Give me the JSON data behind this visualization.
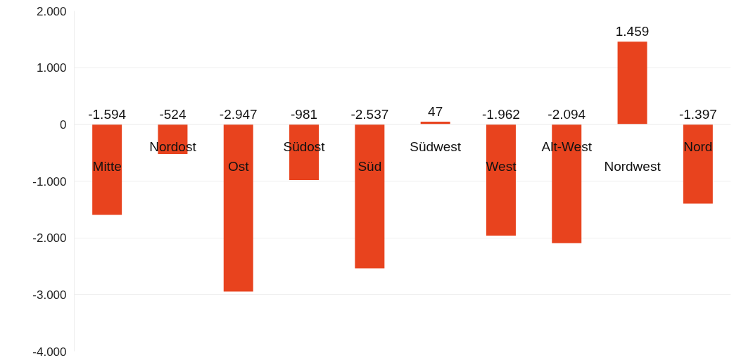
{
  "chart_data": {
    "type": "bar",
    "categories": [
      "Mitte",
      "Nordost",
      "Ost",
      "Südost",
      "Süd",
      "Südwest",
      "West",
      "Alt-West",
      "Nordwest",
      "Nord"
    ],
    "values": [
      -1594,
      -524,
      -2947,
      -981,
      -2537,
      47,
      -1962,
      -2094,
      1459,
      -1397
    ],
    "value_labels": [
      "-1.594",
      "-524",
      "-2.947",
      "-981",
      "-2.537",
      "47",
      "-1.962",
      "-2.094",
      "1.459",
      "-1.397"
    ],
    "color": "#e8431e",
    "ylim": [
      -4000,
      2000
    ],
    "yticks": [
      {
        "value": -4000,
        "label": "-4.000"
      },
      {
        "value": -3000,
        "label": "-3.000"
      },
      {
        "value": -2000,
        "label": "-2.000"
      },
      {
        "value": -1000,
        "label": "-1.000"
      },
      0,
      {
        "value": 1000,
        "label": "1.000"
      },
      {
        "value": 2000,
        "label": "2.000"
      }
    ],
    "grid": "y"
  }
}
